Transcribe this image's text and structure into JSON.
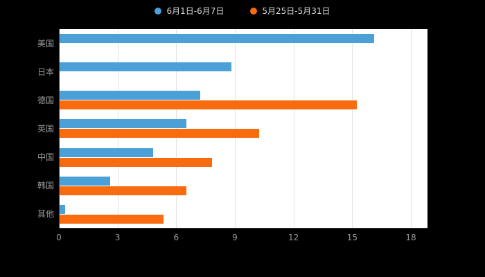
{
  "chart_data": {
    "type": "bar",
    "orientation": "horizontal",
    "title": "",
    "categories": [
      "美国",
      "日本",
      "德国",
      "英国",
      "中国",
      "韩国",
      "其他"
    ],
    "series": [
      {
        "name": "6月1日-6月7日",
        "color": "#4BA0D8",
        "values": [
          16.1,
          8.8,
          7.2,
          6.5,
          4.8,
          2.6,
          0.3
        ]
      },
      {
        "name": "5月25日-5月31日",
        "color": "#F96B0F",
        "values": [
          0,
          0,
          15.2,
          10.2,
          7.8,
          6.5,
          5.3
        ]
      }
    ],
    "xlim": [
      0,
      18
    ],
    "x_ticks": [
      0,
      3,
      6,
      9,
      12,
      15,
      18
    ],
    "grid": true,
    "legend_position": "top",
    "plot_background": "#ffffff",
    "page_background": "#000000",
    "axis_label_color": "#9a9a9a",
    "legend_text_color": "#d8d8d8"
  }
}
